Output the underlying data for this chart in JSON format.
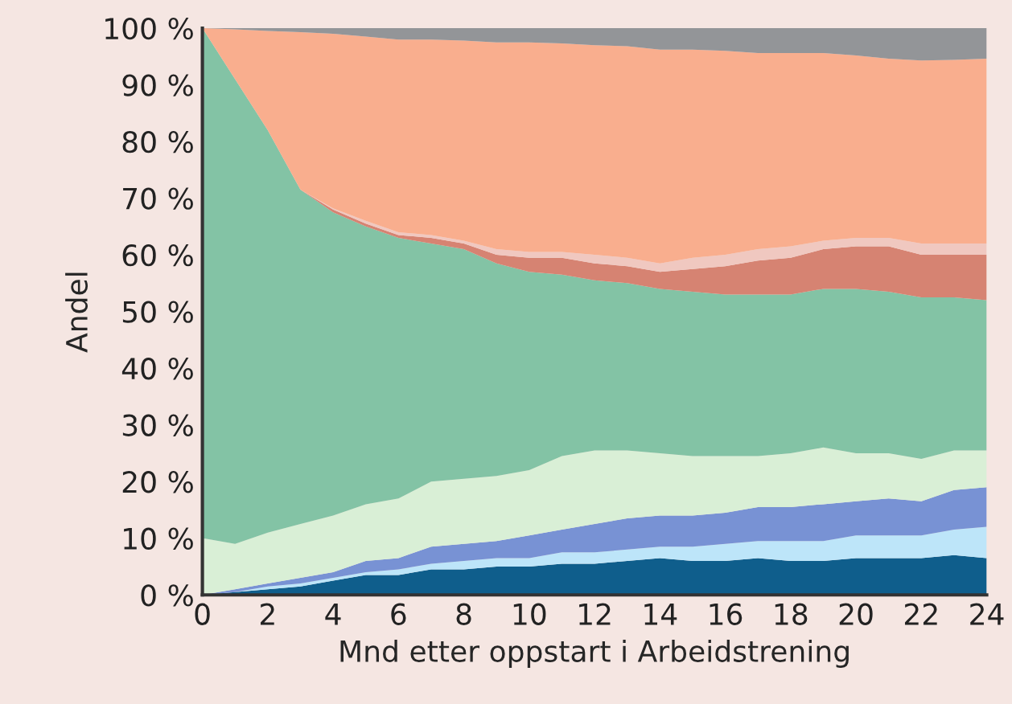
{
  "chart_data": {
    "type": "area",
    "stacked": true,
    "xlabel": "Mnd etter oppstart i Arbeidstrening",
    "ylabel": "Andel",
    "x": [
      0,
      1,
      2,
      3,
      4,
      5,
      6,
      7,
      8,
      9,
      10,
      11,
      12,
      13,
      14,
      15,
      16,
      17,
      18,
      19,
      20,
      21,
      22,
      23,
      24
    ],
    "xlim": [
      0,
      24
    ],
    "xticks": [
      0,
      2,
      4,
      6,
      8,
      10,
      12,
      14,
      16,
      18,
      20,
      22,
      24
    ],
    "ylim": [
      0,
      100
    ],
    "yticks": [
      {
        "value": 0,
        "label": "0 %"
      },
      {
        "value": 10,
        "label": "10 %"
      },
      {
        "value": 20,
        "label": "20 %"
      },
      {
        "value": 30,
        "label": "30 %"
      },
      {
        "value": 40,
        "label": "40 %"
      },
      {
        "value": 50,
        "label": "50 %"
      },
      {
        "value": 60,
        "label": "60 %"
      },
      {
        "value": 70,
        "label": "70 %"
      },
      {
        "value": 80,
        "label": "80 %"
      },
      {
        "value": 90,
        "label": "90 %"
      },
      {
        "value": 100,
        "label": "100 %"
      }
    ],
    "grid": false,
    "legend": false,
    "series": [
      {
        "color": "#0f5e8c",
        "values": [
          0,
          0.5,
          1,
          1.5,
          2.5,
          3.5,
          3.5,
          4.5,
          4.5,
          5,
          5,
          5.5,
          5.5,
          6,
          6.5,
          6,
          6,
          6.5,
          6,
          6,
          6.5,
          6.5,
          6.5,
          7,
          6.5
        ]
      },
      {
        "color": "#bde5f9",
        "values": [
          0,
          0,
          0.5,
          0.5,
          0.5,
          0.5,
          1,
          1,
          1.5,
          1.5,
          1.5,
          2,
          2,
          2,
          2,
          2.5,
          3,
          3,
          3.5,
          3.5,
          4,
          4,
          4,
          4.5,
          5.5
        ]
      },
      {
        "color": "#7892d4",
        "values": [
          0,
          0.5,
          0.5,
          1,
          1,
          2,
          2,
          3,
          3,
          3,
          4,
          4,
          5,
          5.5,
          5.5,
          5.5,
          5.5,
          6,
          6,
          6.5,
          6,
          6.5,
          6,
          7,
          7
        ]
      },
      {
        "color": "#d9efd6",
        "values": [
          10,
          8,
          9,
          9.5,
          10,
          10,
          10.5,
          11.5,
          11.5,
          11.5,
          11.5,
          13,
          13,
          12,
          11,
          10.5,
          10,
          9,
          9.5,
          10,
          8.5,
          8,
          7.5,
          7,
          6.5
        ]
      },
      {
        "color": "#83c3a5",
        "values": [
          90,
          82,
          71,
          59,
          53.5,
          49,
          46,
          42,
          40.5,
          37.5,
          35,
          32,
          30,
          29.5,
          29,
          29,
          28.5,
          28.5,
          28,
          28,
          29,
          28.5,
          28.5,
          27,
          26.5
        ]
      },
      {
        "color": "#d68372",
        "values": [
          0,
          0,
          0,
          0,
          0.5,
          0.5,
          0.5,
          1,
          1,
          1.5,
          2.5,
          3,
          3,
          3,
          3,
          4,
          5,
          6,
          6.5,
          7,
          7.5,
          8,
          7.5,
          7.5,
          8
        ]
      },
      {
        "color": "#f0c8c0",
        "values": [
          0,
          0,
          0,
          0,
          0.2,
          0.5,
          0.5,
          0.5,
          0.5,
          1,
          1,
          1,
          1.5,
          1.5,
          1.5,
          2,
          2,
          2,
          2,
          1.5,
          1.5,
          1.5,
          2,
          2,
          2
        ]
      },
      {
        "color": "#f9ae8e",
        "values": [
          0,
          8.8,
          17.5,
          27.8,
          30.8,
          32.5,
          34,
          34.5,
          35.3,
          36.5,
          37,
          36.8,
          37,
          37.3,
          37.7,
          36.7,
          36,
          34.6,
          34.1,
          33.1,
          32.2,
          31.6,
          32.3,
          32.4,
          32.6
        ]
      },
      {
        "color": "#939598",
        "values": [
          0,
          0.2,
          0.5,
          0.7,
          1,
          1.5,
          2,
          2,
          2.2,
          2.5,
          2.5,
          2.7,
          3,
          3.2,
          3.8,
          3.8,
          4,
          4.4,
          4.4,
          4.4,
          4.8,
          5.4,
          5.7,
          5.6,
          5.4
        ]
      }
    ]
  }
}
